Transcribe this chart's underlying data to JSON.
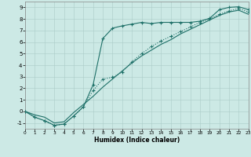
{
  "xlabel": "Humidex (Indice chaleur)",
  "background_color": "#cce9e5",
  "line_color": "#1e7068",
  "grid_color": "#aaccc8",
  "xlim": [
    0,
    23
  ],
  "ylim": [
    -1.5,
    9.5
  ],
  "xticks": [
    0,
    1,
    2,
    3,
    4,
    5,
    6,
    7,
    8,
    9,
    10,
    11,
    12,
    13,
    14,
    15,
    16,
    17,
    18,
    19,
    20,
    21,
    22,
    23
  ],
  "yticks": [
    -1,
    0,
    1,
    2,
    3,
    4,
    5,
    6,
    7,
    8,
    9
  ],
  "line1_x": [
    0,
    1,
    2,
    3,
    4,
    5,
    6,
    7,
    8,
    9,
    10,
    11,
    12,
    13,
    14,
    15,
    16,
    17,
    18,
    19,
    20,
    21,
    22,
    23
  ],
  "line1_y": [
    0,
    -0.5,
    -0.8,
    -1.2,
    -1.1,
    -0.4,
    0.4,
    2.3,
    6.3,
    7.2,
    7.4,
    7.55,
    7.7,
    7.6,
    7.7,
    7.7,
    7.7,
    7.7,
    7.8,
    8.05,
    8.8,
    9.0,
    9.05,
    8.8
  ],
  "line2_x": [
    0,
    1,
    2,
    3,
    4,
    5,
    6,
    7,
    8,
    9,
    10,
    11,
    12,
    13,
    14,
    15,
    16,
    17,
    18,
    19,
    20,
    21,
    22,
    23
  ],
  "line2_y": [
    0,
    -0.5,
    -0.8,
    -1.2,
    -1.1,
    -0.4,
    0.4,
    1.8,
    2.8,
    2.95,
    3.4,
    4.3,
    5.0,
    5.6,
    6.1,
    6.5,
    6.9,
    7.3,
    7.7,
    8.0,
    8.4,
    8.7,
    8.9,
    8.6
  ],
  "line3_x": [
    0,
    1,
    2,
    3,
    4,
    5,
    6,
    7,
    8,
    9,
    10,
    11,
    12,
    13,
    14,
    15,
    16,
    17,
    18,
    19,
    20,
    21,
    22,
    23
  ],
  "line3_y": [
    0,
    -0.3,
    -0.5,
    -1.0,
    -0.9,
    -0.1,
    0.6,
    1.3,
    2.1,
    2.8,
    3.5,
    4.2,
    4.8,
    5.3,
    5.8,
    6.2,
    6.7,
    7.1,
    7.5,
    7.9,
    8.3,
    8.6,
    8.75,
    8.4
  ]
}
